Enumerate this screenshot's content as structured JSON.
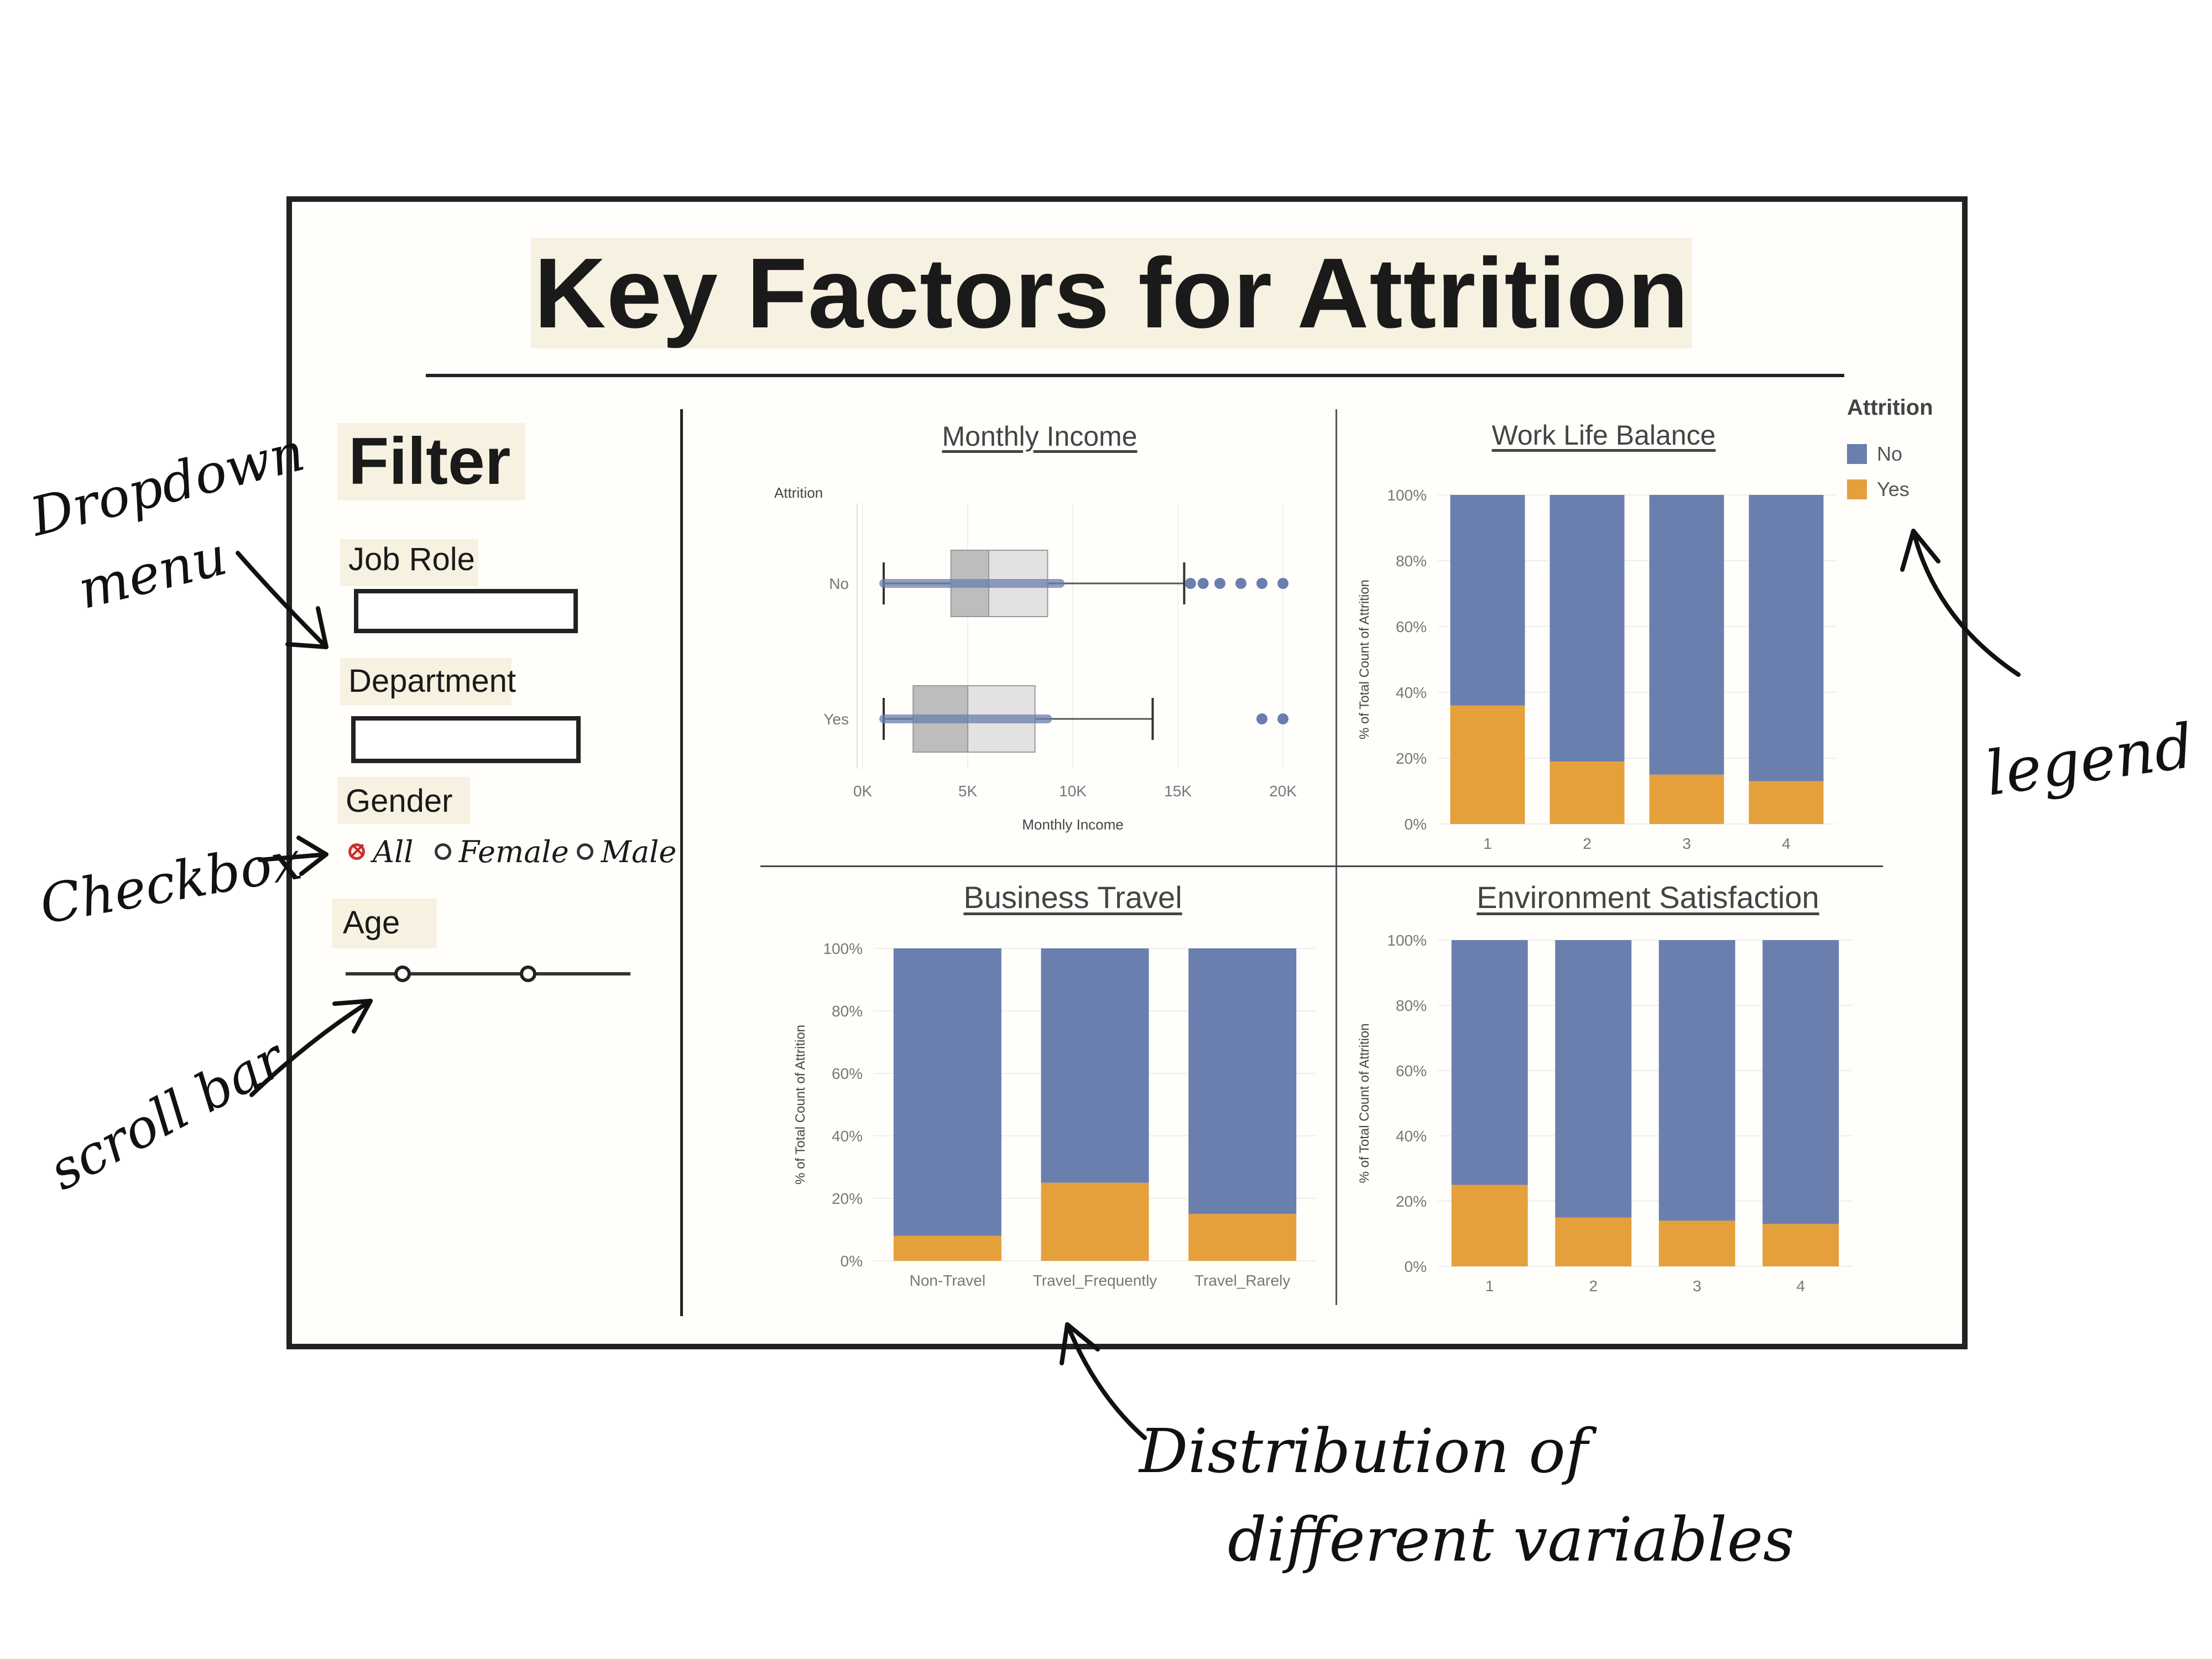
{
  "title": "Key Factors for Attrition",
  "colors": {
    "no": "#6a7fad",
    "yes": "#e5a03b",
    "highlight": "#f7f1e1"
  },
  "filter": {
    "heading": "Filter",
    "job_role_label": "Job Role",
    "department_label": "Department",
    "gender_label": "Gender",
    "gender_options": [
      "All",
      "Female",
      "Male"
    ],
    "gender_selected": "All",
    "age_label": "Age",
    "age_range_fraction": [
      0.2,
      0.64
    ]
  },
  "legend": {
    "title": "Attrition",
    "items": [
      "No",
      "Yes"
    ]
  },
  "annotations": {
    "dropdown": [
      "Dropdown",
      "menu"
    ],
    "checkbox": "Checkbox",
    "scrollbar": "scroll bar",
    "legend": "legend",
    "distribution": [
      "Distribution of",
      "different variables"
    ]
  },
  "chart_data": [
    {
      "type": "boxplot",
      "title": "Monthly Income",
      "xlabel": "Monthly Income",
      "ylabel": "Attrition",
      "categories": [
        "No",
        "Yes"
      ],
      "xticks": [
        "0K",
        "5K",
        "10K",
        "15K",
        "20K"
      ],
      "xlim": [
        0,
        20000
      ],
      "boxes": [
        {
          "name": "No",
          "min": 1000,
          "q1": 4200,
          "median": 6000,
          "q3": 8800,
          "max": 15300,
          "outliers": [
            15600,
            16200,
            17000,
            18000,
            19000,
            20000
          ]
        },
        {
          "name": "Yes",
          "min": 1000,
          "q1": 2400,
          "median": 5000,
          "q3": 8200,
          "max": 13800,
          "outliers": [
            19000,
            20000
          ]
        }
      ]
    },
    {
      "type": "bar",
      "stacked": true,
      "title": "Work Life Balance",
      "ylabel": "% of Total Count of Attrition",
      "categories": [
        "1",
        "2",
        "3",
        "4"
      ],
      "yticks": [
        "0%",
        "20%",
        "40%",
        "60%",
        "80%",
        "100%"
      ],
      "ylim": [
        0,
        100
      ],
      "series": [
        {
          "name": "Yes",
          "values": [
            36,
            19,
            15,
            13
          ]
        },
        {
          "name": "No",
          "values": [
            64,
            81,
            85,
            87
          ]
        }
      ]
    },
    {
      "type": "bar",
      "stacked": true,
      "title": "Business Travel",
      "ylabel": "% of Total Count of Attrition",
      "categories": [
        "Non-Travel",
        "Travel_Frequently",
        "Travel_Rarely"
      ],
      "yticks": [
        "0%",
        "20%",
        "40%",
        "60%",
        "80%",
        "100%"
      ],
      "ylim": [
        0,
        100
      ],
      "series": [
        {
          "name": "Yes",
          "values": [
            8,
            25,
            15
          ]
        },
        {
          "name": "No",
          "values": [
            92,
            75,
            85
          ]
        }
      ]
    },
    {
      "type": "bar",
      "stacked": true,
      "title": "Environment Satisfaction",
      "ylabel": "% of Total Count of Attrition",
      "categories": [
        "1",
        "2",
        "3",
        "4"
      ],
      "yticks": [
        "0%",
        "20%",
        "40%",
        "60%",
        "80%",
        "100%"
      ],
      "ylim": [
        0,
        100
      ],
      "series": [
        {
          "name": "Yes",
          "values": [
            25,
            15,
            14,
            13
          ]
        },
        {
          "name": "No",
          "values": [
            75,
            85,
            86,
            87
          ]
        }
      ]
    }
  ]
}
